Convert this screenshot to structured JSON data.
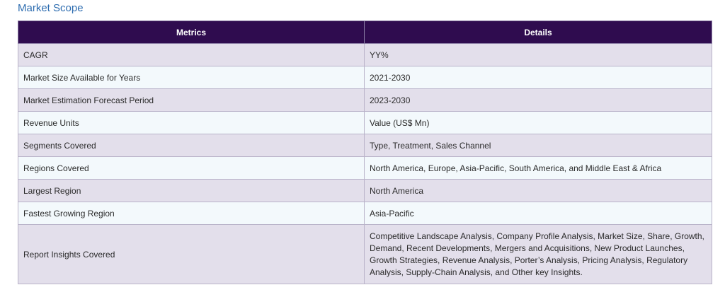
{
  "heading": "Market Scope",
  "table": {
    "headers": [
      "Metrics",
      "Details"
    ],
    "rows": [
      {
        "metric": "CAGR",
        "detail": "YY%"
      },
      {
        "metric": "Market Size Available for Years",
        "detail": "2021-2030"
      },
      {
        "metric": "Market Estimation Forecast Period",
        "detail": "2023-2030"
      },
      {
        "metric": "Revenue Units",
        "detail": "Value (US$ Mn)"
      },
      {
        "metric": "Segments Covered",
        "detail": "Type, Treatment, Sales Channel"
      },
      {
        "metric": "Regions Covered",
        "detail": "North America, Europe, Asia-Pacific, South America, and Middle East & Africa"
      },
      {
        "metric": "Largest Region",
        "detail": "North America"
      },
      {
        "metric": "Fastest Growing Region",
        "detail": "Asia-Pacific"
      },
      {
        "metric": "Report Insights Covered",
        "detail": "Competitive Landscape Analysis, Company Profile Analysis, Market Size, Share, Growth, Demand, Recent Developments, Mergers and Acquisitions, New Product Launches, Growth Strategies, Revenue Analysis, Porter’s Analysis, Pricing Analysis, Regulatory Analysis, Supply-Chain Analysis, and Other key Insights."
      }
    ]
  },
  "colors": {
    "heading": "#2e6db0",
    "header_bg": "#2f0c4f",
    "row_odd": "#e3dfeb",
    "row_even": "#f3f9fc"
  }
}
